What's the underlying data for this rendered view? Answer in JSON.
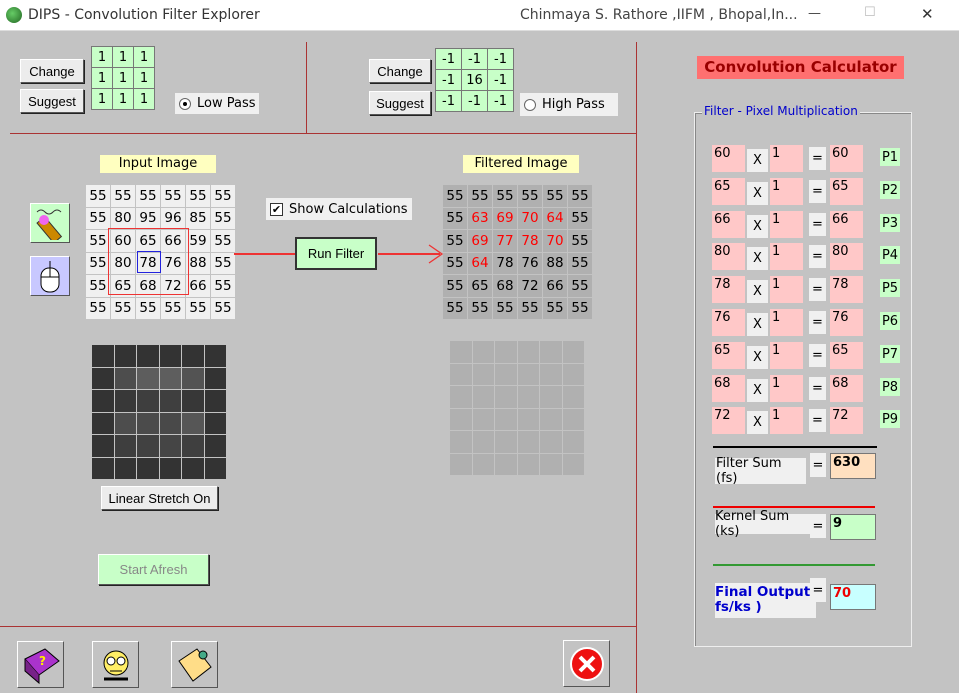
{
  "window": {
    "title": "DIPS - Convolution  Filter Explorer",
    "author": "Chinmaya S. Rathore ,IIFM , Bhopal,In...",
    "controls": [
      "—",
      "☐",
      "✕"
    ]
  },
  "low_pass": {
    "change_label": "Change",
    "suggest_label": "Suggest",
    "kernel": [
      1,
      1,
      1,
      1,
      1,
      1,
      1,
      1,
      1
    ],
    "radio_label": "Low Pass",
    "selected": true
  },
  "high_pass": {
    "change_label": "Change",
    "suggest_label": "Suggest",
    "kernel": [
      -1,
      -1,
      -1,
      -1,
      16,
      -1,
      -1,
      -1,
      -1
    ],
    "radio_label": "High Pass",
    "selected": false
  },
  "input_image": {
    "label": "Input Image",
    "values": [
      [
        55,
        55,
        55,
        55,
        55,
        55
      ],
      [
        55,
        80,
        95,
        96,
        85,
        55
      ],
      [
        55,
        60,
        65,
        66,
        59,
        55
      ],
      [
        55,
        80,
        78,
        76,
        88,
        55
      ],
      [
        55,
        65,
        68,
        72,
        66,
        55
      ],
      [
        55,
        55,
        55,
        55,
        55,
        55
      ]
    ],
    "window_center": [
      3,
      2
    ]
  },
  "filtered_image": {
    "label": "Filtered Image",
    "values": [
      [
        55,
        55,
        55,
        55,
        55,
        55
      ],
      [
        55,
        63,
        69,
        70,
        64,
        55
      ],
      [
        55,
        69,
        77,
        78,
        70,
        55
      ],
      [
        55,
        64,
        78,
        76,
        88,
        55
      ],
      [
        55,
        65,
        68,
        72,
        66,
        55
      ],
      [
        55,
        55,
        55,
        55,
        55,
        55
      ]
    ],
    "computed_cells": [
      [
        1,
        1
      ],
      [
        1,
        2
      ],
      [
        1,
        3
      ],
      [
        1,
        4
      ],
      [
        2,
        1
      ],
      [
        2,
        2
      ],
      [
        2,
        3
      ],
      [
        2,
        4
      ],
      [
        3,
        1
      ]
    ]
  },
  "show_calculations": {
    "label": "Show Calculations",
    "checked": true
  },
  "run_filter_label": "Run Filter",
  "linear_stretch_label": "Linear Stretch On",
  "start_afresh_label": "Start Afresh",
  "calculator": {
    "title": "Convolution Calculator",
    "group_label": "Filter - Pixel Multiplication",
    "rows": [
      {
        "pixel": "60",
        "kernel": "1",
        "result": "60",
        "label": "P1"
      },
      {
        "pixel": "65",
        "kernel": "1",
        "result": "65",
        "label": "P2"
      },
      {
        "pixel": "66",
        "kernel": "1",
        "result": "66",
        "label": "P3"
      },
      {
        "pixel": "80",
        "kernel": "1",
        "result": "80",
        "label": "P4"
      },
      {
        "pixel": "78",
        "kernel": "1",
        "result": "78",
        "label": "P5"
      },
      {
        "pixel": "76",
        "kernel": "1",
        "result": "76",
        "label": "P6"
      },
      {
        "pixel": "65",
        "kernel": "1",
        "result": "65",
        "label": "P7"
      },
      {
        "pixel": "68",
        "kernel": "1",
        "result": "68",
        "label": "P8"
      },
      {
        "pixel": "72",
        "kernel": "1",
        "result": "72",
        "label": "P9"
      }
    ],
    "times": "X",
    "equals": "=",
    "filter_sum_label": "Filter Sum (fs)",
    "filter_sum": "630",
    "kernel_sum_label": "Kernel Sum (ks)",
    "kernel_sum": "9",
    "final_output_label": "Final Output fs/ks )",
    "final_output": "70"
  },
  "colors": {
    "background": "#c3c3c3",
    "kernel_cell": "#c8ffc8",
    "highlight": "#ff0000",
    "window_border": "#0000ff",
    "divider": "#aa3333"
  }
}
